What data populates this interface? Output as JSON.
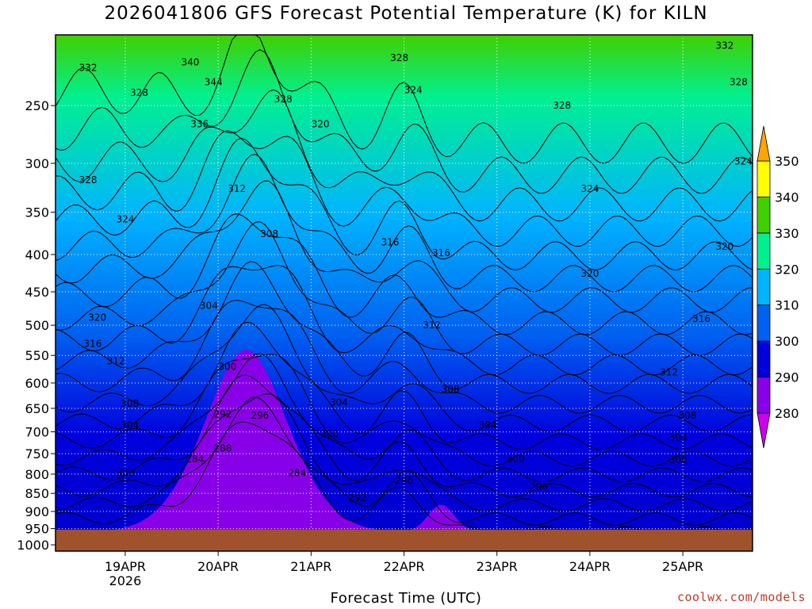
{
  "chart_data": {
    "type": "heatmap",
    "title": "2026041806 GFS Forecast Potential Temperature (K) for KILN",
    "xlabel": "Forecast Time (UTC)",
    "ylabel": "",
    "x_ticks": [
      {
        "label": "19APR",
        "sub": "2026",
        "day": 19
      },
      {
        "label": "20APR",
        "sub": "",
        "day": 20
      },
      {
        "label": "21APR",
        "sub": "",
        "day": 21
      },
      {
        "label": "22APR",
        "sub": "",
        "day": 22
      },
      {
        "label": "23APR",
        "sub": "",
        "day": 23
      },
      {
        "label": "24APR",
        "sub": "",
        "day": 24
      },
      {
        "label": "25APR",
        "sub": "",
        "day": 25
      }
    ],
    "x_range_days": [
      18.25,
      25.75
    ],
    "y_scale": "log",
    "y_range_hPa": [
      200,
      1020
    ],
    "y_ticks": [
      "250",
      "300",
      "350",
      "400",
      "450",
      "500",
      "550",
      "600",
      "650",
      "700",
      "750",
      "800",
      "850",
      "900",
      "950",
      "1000"
    ],
    "colorbar": {
      "levels": [
        "280",
        "290",
        "300",
        "310",
        "320",
        "330",
        "340",
        "350"
      ],
      "colors": [
        "#cc00ee",
        "#8800e8",
        "#0000dd",
        "#0060f0",
        "#00b4ff",
        "#00f090",
        "#40d000",
        "#ffff00",
        "#ffa500"
      ]
    },
    "contour_labels": [
      {
        "text": "332",
        "day": 18.6,
        "p": 222
      },
      {
        "text": "328",
        "day": 19.15,
        "p": 240
      },
      {
        "text": "340",
        "day": 19.7,
        "p": 218
      },
      {
        "text": "344",
        "day": 19.95,
        "p": 232
      },
      {
        "text": "336",
        "day": 19.8,
        "p": 265
      },
      {
        "text": "328",
        "day": 20.7,
        "p": 245
      },
      {
        "text": "320",
        "day": 21.1,
        "p": 265
      },
      {
        "text": "328",
        "day": 21.95,
        "p": 215
      },
      {
        "text": "324",
        "day": 22.1,
        "p": 238
      },
      {
        "text": "328",
        "day": 23.7,
        "p": 250
      },
      {
        "text": "332",
        "day": 25.45,
        "p": 207
      },
      {
        "text": "328",
        "day": 25.6,
        "p": 232
      },
      {
        "text": "328",
        "day": 18.6,
        "p": 316
      },
      {
        "text": "324",
        "day": 19.0,
        "p": 358
      },
      {
        "text": "312",
        "day": 20.2,
        "p": 325
      },
      {
        "text": "308",
        "day": 20.55,
        "p": 375
      },
      {
        "text": "324",
        "day": 24.0,
        "p": 325
      },
      {
        "text": "324",
        "day": 25.65,
        "p": 298
      },
      {
        "text": "316",
        "day": 21.85,
        "p": 385
      },
      {
        "text": "316",
        "day": 22.4,
        "p": 398
      },
      {
        "text": "320",
        "day": 25.45,
        "p": 390
      },
      {
        "text": "320",
        "day": 24.0,
        "p": 425
      },
      {
        "text": "304",
        "day": 19.9,
        "p": 470
      },
      {
        "text": "320",
        "day": 18.7,
        "p": 488
      },
      {
        "text": "316",
        "day": 18.65,
        "p": 530
      },
      {
        "text": "312",
        "day": 18.9,
        "p": 560
      },
      {
        "text": "312",
        "day": 22.3,
        "p": 500
      },
      {
        "text": "316",
        "day": 25.2,
        "p": 490
      },
      {
        "text": "300",
        "day": 20.1,
        "p": 570
      },
      {
        "text": "312",
        "day": 24.85,
        "p": 580
      },
      {
        "text": "308",
        "day": 22.5,
        "p": 612
      },
      {
        "text": "304",
        "day": 21.3,
        "p": 638
      },
      {
        "text": "308",
        "day": 19.05,
        "p": 640
      },
      {
        "text": "292",
        "day": 20.05,
        "p": 662
      },
      {
        "text": "296",
        "day": 20.45,
        "p": 665
      },
      {
        "text": "308",
        "day": 25.05,
        "p": 665
      },
      {
        "text": "304",
        "day": 19.05,
        "p": 686
      },
      {
        "text": "304",
        "day": 22.9,
        "p": 685
      },
      {
        "text": "300",
        "day": 21.2,
        "p": 705
      },
      {
        "text": "304",
        "day": 24.95,
        "p": 712
      },
      {
        "text": "288",
        "day": 20.05,
        "p": 738
      },
      {
        "text": "284",
        "day": 19.75,
        "p": 763
      },
      {
        "text": "300",
        "day": 23.2,
        "p": 763
      },
      {
        "text": "300",
        "day": 24.95,
        "p": 765
      },
      {
        "text": "300",
        "day": 19.0,
        "p": 797
      },
      {
        "text": "284",
        "day": 20.85,
        "p": 797
      },
      {
        "text": "296",
        "day": 22.0,
        "p": 816
      },
      {
        "text": "296",
        "day": 23.45,
        "p": 833
      },
      {
        "text": "292",
        "day": 21.5,
        "p": 863
      }
    ]
  },
  "credit": "coolwx.com/models"
}
